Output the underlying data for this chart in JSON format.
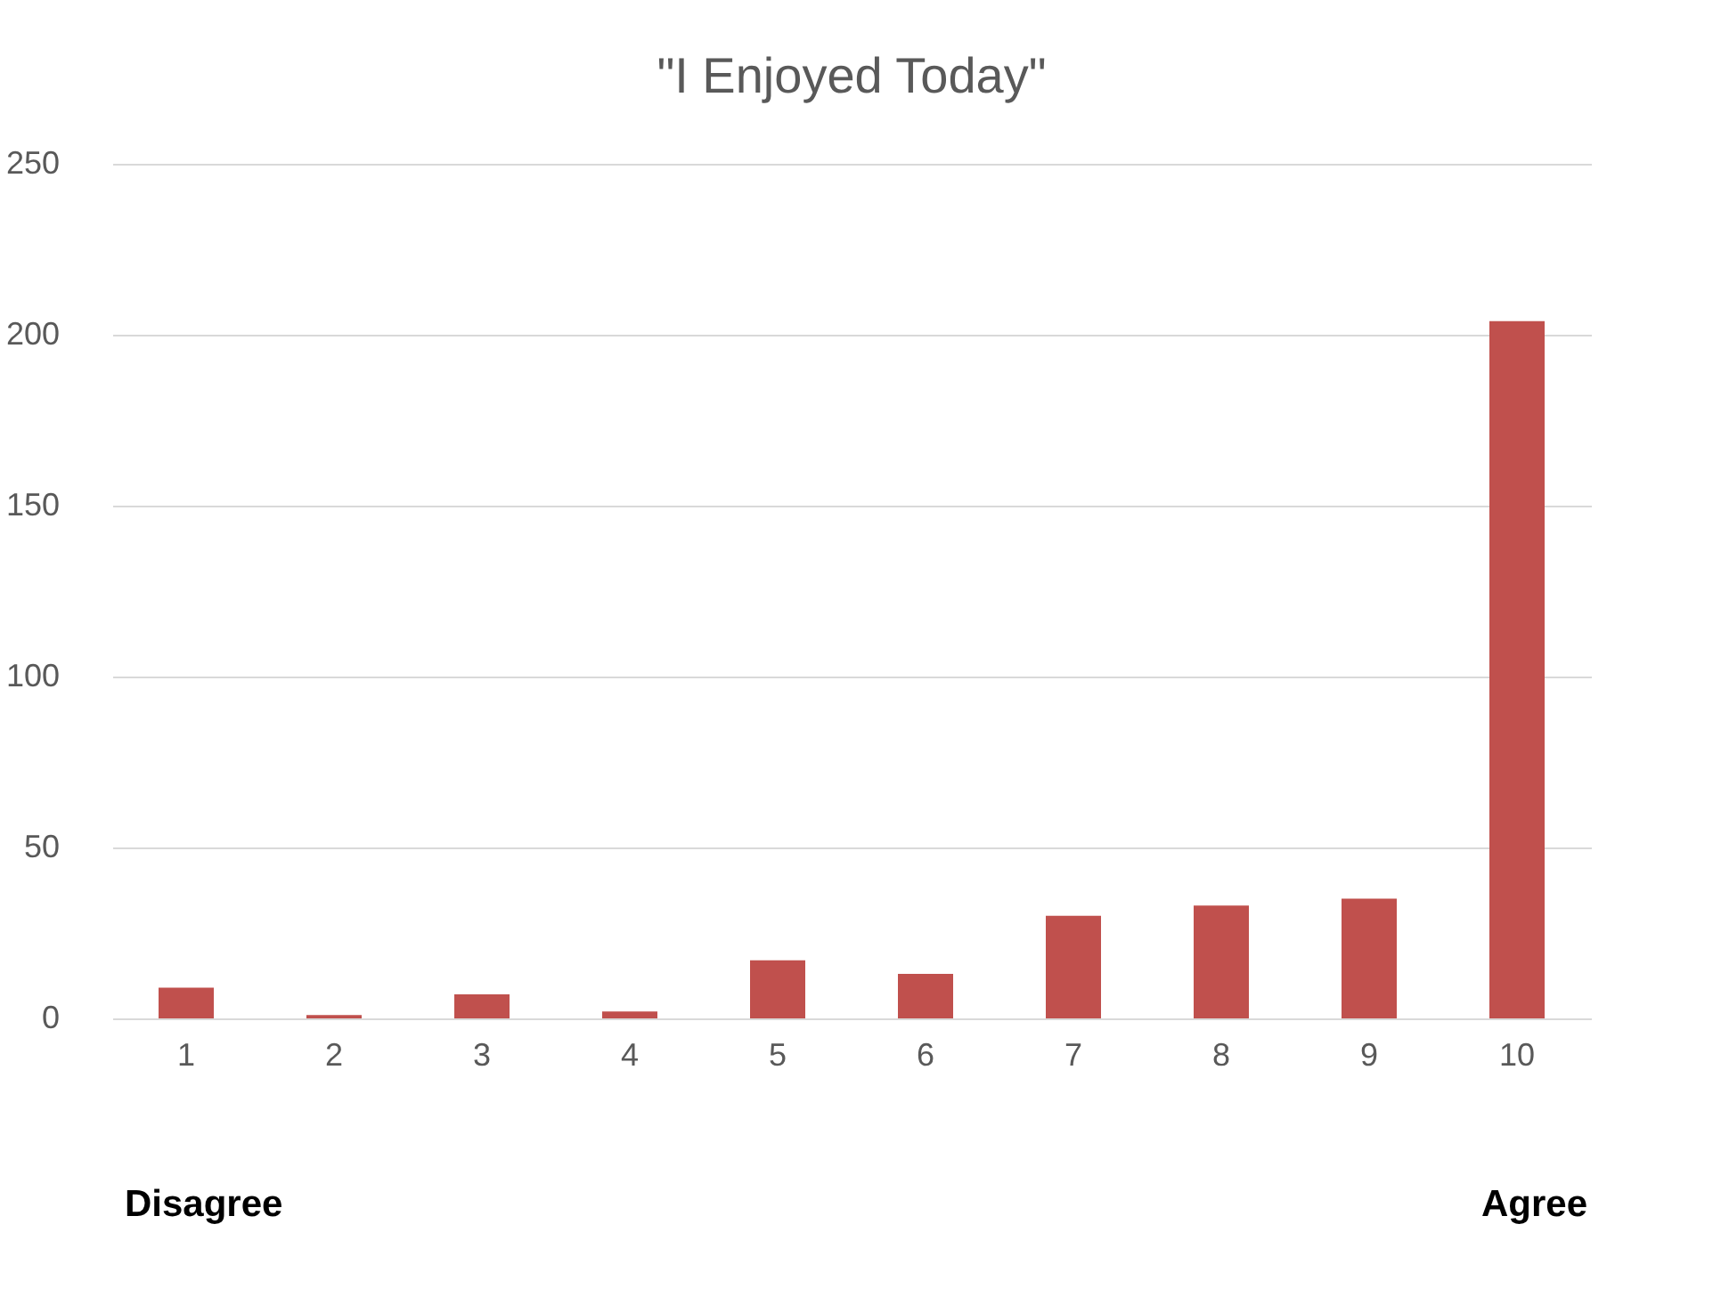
{
  "chart_data": {
    "type": "bar",
    "title": "\"I Enjoyed Today\"",
    "categories": [
      "1",
      "2",
      "3",
      "4",
      "5",
      "6",
      "7",
      "8",
      "9",
      "10"
    ],
    "values": [
      9,
      1,
      7,
      2,
      17,
      13,
      30,
      33,
      35,
      204
    ],
    "color": "#c0504d",
    "ylim": [
      0,
      250
    ],
    "yticks": [
      0,
      50,
      100,
      150,
      200,
      250
    ],
    "grid": "y",
    "annotations": [
      "Disagree",
      "Agree"
    ]
  }
}
